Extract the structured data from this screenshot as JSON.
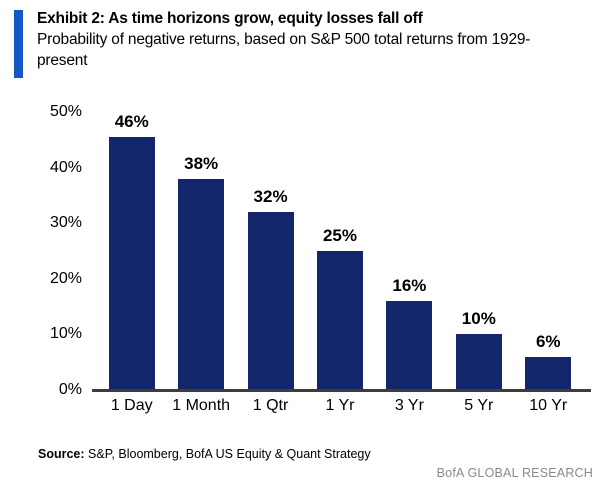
{
  "header": {
    "title": "Exhibit 2: As time horizons grow, equity losses fall off",
    "subtitle": "Probability of negative returns, based on S&P 500 total returns from 1929-present"
  },
  "chart_data": {
    "type": "bar",
    "title": "Probability of negative returns, based on S&P 500 total returns from 1929-present",
    "categories": [
      "1 Day",
      "1 Month",
      "1 Qtr",
      "1 Yr",
      "3 Yr",
      "5 Yr",
      "10 Yr"
    ],
    "values": [
      46,
      38,
      32,
      25,
      16,
      10,
      6
    ],
    "value_labels": [
      "46%",
      "38%",
      "32%",
      "25%",
      "16%",
      "10%",
      "6%"
    ],
    "xlabel": "",
    "ylabel": "",
    "ylim": [
      0,
      50
    ],
    "ytick_labels": [
      "50%",
      "40%",
      "30%",
      "20%",
      "10%",
      "0%"
    ],
    "grid": false,
    "legend": false
  },
  "footer": {
    "source_label": "Source:",
    "source_text": "S&P, Bloomberg, BofA US Equity & Quant Strategy",
    "brand": "BofA GLOBAL RESEARCH"
  },
  "colors": {
    "accent_blue": "#1656c5",
    "bar_navy": "#14266b",
    "axis_gray": "#3d3d3d",
    "brand_gray": "#8a8a8a",
    "text_black": "#000000"
  }
}
